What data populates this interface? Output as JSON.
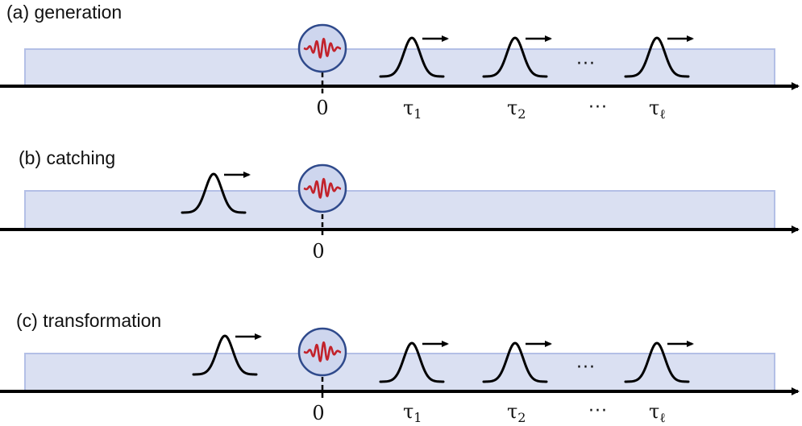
{
  "colors": {
    "waveguide_fill": "#dae0f2",
    "waveguide_stroke": "#b3bfe6",
    "axis": "#000000",
    "emitter_fill": "#ced6ee",
    "emitter_stroke": "#2f4a8c",
    "emitter_wave": "#c2222b",
    "pulse": "#000000"
  },
  "icons": {
    "emitter": "emitter-circle-icon",
    "pulse": "gaussian-pulse-icon",
    "arrow": "right-arrow-icon"
  },
  "panels": [
    {
      "label": "(a) generation",
      "origin_label": "0",
      "tau_symbol": "τ",
      "tau_subscripts": [
        "1",
        "2",
        "ℓ"
      ],
      "ellipsis": "···"
    },
    {
      "label": "(b) catching",
      "origin_label": "0"
    },
    {
      "label": "(c) transformation",
      "origin_label": "0",
      "tau_symbol": "τ",
      "tau_subscripts": [
        "1",
        "2",
        "ℓ"
      ],
      "ellipsis": "···"
    }
  ]
}
